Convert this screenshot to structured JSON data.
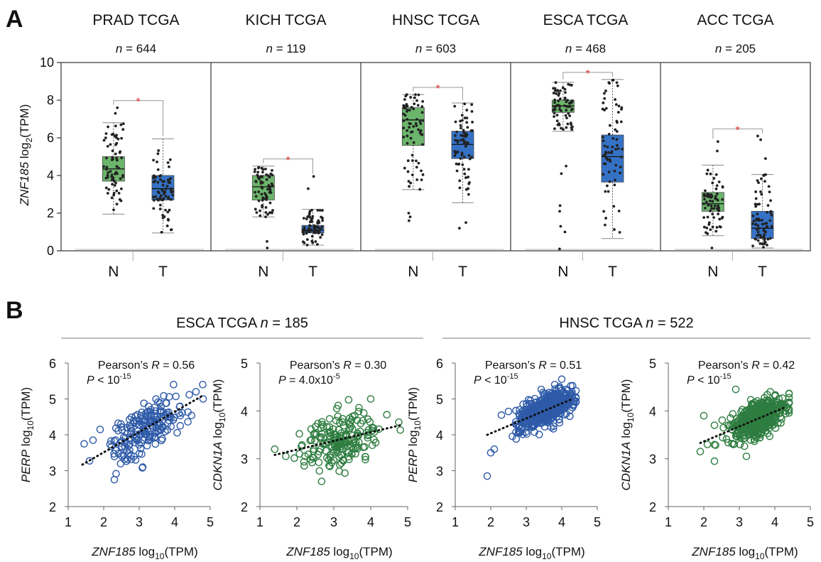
{
  "panel_a": {
    "label": "A",
    "ylabel_gene": "ZNF185",
    "ylabel_rest": " log",
    "ylabel_sub": "2",
    "ylabel_unit": "(TPM)",
    "colors": {
      "normal": "#6cb56c",
      "tumor": "#3572c6",
      "point": "#222222",
      "star": "#e53935"
    }
  },
  "panel_b": {
    "label": "B",
    "n_italic": "n",
    "colors": {
      "blue": "#2e5aa8",
      "green": "#2e7d40"
    }
  },
  "chart_data": [
    {
      "type": "box",
      "ylim": [
        0,
        10
      ],
      "yticks": [
        "0",
        "2",
        "4",
        "6",
        "8",
        "10"
      ],
      "groups": [
        "N",
        "T"
      ],
      "significance_mark": "*",
      "cohorts": [
        {
          "title": "PRAD TCGA",
          "n_prefix": "n",
          "n_value": " = 644",
          "N": {
            "min": 1.95,
            "q1": 3.7,
            "median": 4.35,
            "q3": 5.0,
            "max": 6.8,
            "outliers": [
              7.3,
              7.6
            ]
          },
          "T": {
            "min": 0.95,
            "q1": 2.7,
            "median": 3.3,
            "q3": 4.0,
            "max": 5.95,
            "outliers": []
          }
        },
        {
          "title": "KICH TCGA",
          "n_prefix": "n",
          "n_value": " = 119",
          "N": {
            "min": 1.8,
            "q1": 2.7,
            "median": 3.4,
            "q3": 4.0,
            "max": 4.5,
            "outliers": [
              0.5,
              0.15
            ]
          },
          "T": {
            "min": 0.3,
            "q1": 0.95,
            "median": 1.1,
            "q3": 1.35,
            "max": 2.2,
            "outliers": [
              3.95,
              3.3
            ]
          }
        },
        {
          "title": "HNSC TCGA",
          "n_prefix": "n",
          "n_value": " = 603",
          "N": {
            "min": 3.25,
            "q1": 5.6,
            "median": 6.95,
            "q3": 7.6,
            "max": 8.3,
            "outliers": [
              2.0,
              1.6,
              1.8
            ]
          },
          "T": {
            "min": 2.55,
            "q1": 4.9,
            "median": 5.65,
            "q3": 6.35,
            "max": 7.85,
            "outliers": [
              1.2,
              1.5
            ]
          }
        },
        {
          "title": "ESCA TCGA",
          "n_prefix": "n",
          "n_value": " = 468",
          "N": {
            "min": 6.35,
            "q1": 7.35,
            "median": 7.7,
            "q3": 8.0,
            "max": 8.95,
            "outliers": [
              0.1,
              1.0,
              1.3,
              2.1,
              2.4,
              4.1,
              4.5
            ]
          },
          "T": {
            "min": 0.65,
            "q1": 3.65,
            "median": 5.0,
            "q3": 6.15,
            "max": 9.1,
            "outliers": []
          }
        },
        {
          "title": "ACC TCGA",
          "n_prefix": "n",
          "n_value": " = 205",
          "N": {
            "min": 0.8,
            "q1": 2.1,
            "median": 2.5,
            "q3": 3.1,
            "max": 4.55,
            "outliers": [
              0.15,
              5.3,
              5.8
            ]
          },
          "T": {
            "min": 0.15,
            "q1": 0.65,
            "median": 1.2,
            "q3": 2.1,
            "max": 4.05,
            "outliers": [
              4.9,
              5.9,
              6.1
            ]
          }
        }
      ]
    },
    {
      "type": "scatter",
      "header": "ESCA TCGA",
      "n_value": " = 185",
      "xlabel_gene": "ZNF185",
      "xlabel_rest": " log",
      "xlabel_sub": "10",
      "xlabel_unit": "(TPM)",
      "plots": [
        {
          "ylabel_gene": "PERP",
          "ylabel_rest": " log",
          "ylabel_sub": "10",
          "ylabel_unit": "(TPM)",
          "xlim": [
            1,
            5
          ],
          "ylim": [
            2,
            6
          ],
          "xticks": [
            "1",
            "2",
            "3",
            "4",
            "5"
          ],
          "yticks": [
            "2",
            "3",
            "4",
            "5",
            "6"
          ],
          "r_label": "Pearson’s ",
          "r_italic": "R",
          "r_value": " = 0.56",
          "p_italic": "P",
          "p_rel": " < 10",
          "p_exp": "-15",
          "p_tail": "",
          "color": "#2e5aa8",
          "trend": {
            "x0": 1.4,
            "y0": 3.17,
            "x1": 4.8,
            "y1": 5.1
          },
          "cloud": {
            "n": 185,
            "xmean": 3.2,
            "xsd": 0.55,
            "slope": 0.57,
            "icpt": 2.37,
            "noise": 0.32,
            "xmin": 1.4,
            "xmax": 4.8
          },
          "points": [
            [
              1.45,
              3.75
            ],
            [
              1.7,
              3.85
            ],
            [
              1.9,
              4.15
            ],
            [
              2.3,
              2.75
            ],
            [
              2.9,
              3.3
            ],
            [
              3.1,
              3.1
            ],
            [
              4.8,
              5.0
            ],
            [
              4.6,
              5.2
            ]
          ]
        },
        {
          "ylabel_gene": "CDKN1A",
          "ylabel_rest": " log",
          "ylabel_sub": "10",
          "ylabel_unit": "(TPM)",
          "xlim": [
            1,
            5
          ],
          "ylim": [
            2,
            5
          ],
          "xticks": [
            "1",
            "2",
            "3",
            "4",
            "5"
          ],
          "yticks": [
            "2",
            "3",
            "4",
            "5"
          ],
          "r_label": "Pearson’s ",
          "r_italic": "R",
          "r_value": " = 0.30",
          "p_italic": "P",
          "p_rel": " = 4.0x10",
          "p_exp": "-5",
          "p_tail": "",
          "color": "#2e7d40",
          "trend": {
            "x0": 1.4,
            "y0": 3.08,
            "x1": 4.8,
            "y1": 3.7
          },
          "cloud": {
            "n": 185,
            "xmean": 3.2,
            "xsd": 0.55,
            "slope": 0.18,
            "icpt": 2.83,
            "noise": 0.28,
            "xmin": 1.4,
            "xmax": 4.8
          },
          "points": [
            [
              1.4,
              3.2
            ],
            [
              1.7,
              3.05
            ],
            [
              2.2,
              2.85
            ],
            [
              3.3,
              2.7
            ],
            [
              4.0,
              4.25
            ],
            [
              4.8,
              3.6
            ]
          ]
        }
      ]
    },
    {
      "type": "scatter",
      "header": "HNSC TCGA",
      "n_value": " = 522",
      "xlabel_gene": "ZNF185",
      "xlabel_rest": " log",
      "xlabel_sub": "10",
      "xlabel_unit": "(TPM)",
      "plots": [
        {
          "ylabel_gene": "PERP",
          "ylabel_rest": " log",
          "ylabel_sub": "10",
          "ylabel_unit": "(TPM)",
          "xlim": [
            1,
            5
          ],
          "ylim": [
            2,
            6
          ],
          "xticks": [
            "1",
            "2",
            "3",
            "4",
            "5"
          ],
          "yticks": [
            "2",
            "3",
            "4",
            "5",
            "6"
          ],
          "r_label": "Pearson’s ",
          "r_italic": "R",
          "r_value": " = 0.51",
          "p_italic": "P",
          "p_rel": " < 10",
          "p_exp": "-15",
          "p_tail": "",
          "color": "#2e5aa8",
          "trend": {
            "x0": 1.9,
            "y0": 4.0,
            "x1": 4.3,
            "y1": 5.0
          },
          "cloud": {
            "n": 522,
            "xmean": 3.55,
            "xsd": 0.38,
            "slope": 0.42,
            "icpt": 3.2,
            "noise": 0.2,
            "xmin": 2.3,
            "xmax": 4.4
          },
          "points": [
            [
              1.9,
              2.85
            ],
            [
              2.0,
              3.5
            ],
            [
              2.1,
              3.6
            ],
            [
              2.3,
              4.55
            ],
            [
              2.5,
              4.65
            ],
            [
              4.0,
              5.55
            ]
          ]
        },
        {
          "ylabel_gene": "CDKN1A",
          "ylabel_rest": " log",
          "ylabel_sub": "10",
          "ylabel_unit": "(TPM)",
          "xlim": [
            1,
            5
          ],
          "ylim": [
            2,
            5
          ],
          "xticks": [
            "1",
            "2",
            "3",
            "4",
            "5"
          ],
          "yticks": [
            "2",
            "3",
            "4",
            "5"
          ],
          "r_label": "Pearson’s ",
          "r_italic": "R",
          "r_value": " = 0.42",
          "p_italic": "P",
          "p_rel": " < 10",
          "p_exp": "-15",
          "p_tail": "",
          "color": "#2e7d40",
          "trend": {
            "x0": 1.9,
            "y0": 3.33,
            "x1": 4.3,
            "y1": 4.08
          },
          "cloud": {
            "n": 522,
            "xmean": 3.55,
            "xsd": 0.38,
            "slope": 0.31,
            "icpt": 2.74,
            "noise": 0.18,
            "xmin": 2.3,
            "xmax": 4.4
          },
          "points": [
            [
              1.9,
              3.15
            ],
            [
              2.0,
              3.9
            ],
            [
              2.1,
              3.3
            ],
            [
              2.3,
              3.7
            ],
            [
              2.9,
              4.45
            ],
            [
              3.2,
              3.05
            ]
          ]
        }
      ]
    }
  ]
}
